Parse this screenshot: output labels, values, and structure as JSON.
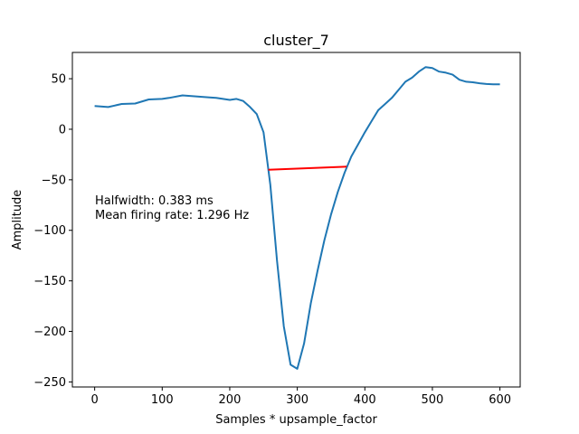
{
  "chart_data": {
    "type": "line",
    "title": "cluster_7",
    "xlabel": "Samples * upsample_factor",
    "ylabel": "Amplitude",
    "xlim": [
      -33,
      630
    ],
    "ylim": [
      -255,
      76
    ],
    "xticks": [
      0,
      100,
      200,
      300,
      400,
      500,
      600
    ],
    "yticks": [
      -250,
      -200,
      -150,
      -100,
      -50,
      0,
      50
    ],
    "xtick_labels": [
      "0",
      "100",
      "200",
      "300",
      "400",
      "500",
      "600"
    ],
    "ytick_labels": [
      "−250",
      "−200",
      "−150",
      "−100",
      "−50",
      "0",
      "50"
    ],
    "grid": false,
    "annotations": [
      "Halfwidth: 0.383 ms",
      "Mean firing rate: 1.296 Hz"
    ],
    "series": [
      {
        "color": "#1f77b4",
        "x": [
          0,
          20,
          40,
          60,
          80,
          100,
          110,
          130,
          150,
          170,
          180,
          200,
          210,
          220,
          230,
          240,
          250,
          260,
          270,
          280,
          290,
          300,
          310,
          320,
          330,
          340,
          350,
          360,
          370,
          380,
          390,
          400,
          410,
          420,
          430,
          440,
          450,
          460,
          470,
          480,
          490,
          500,
          510,
          520,
          530,
          540,
          550,
          560,
          570,
          580,
          590,
          600
        ],
        "y": [
          23,
          22,
          25,
          25.5,
          29.5,
          30,
          31,
          33.5,
          32.5,
          31.5,
          31,
          29,
          30,
          28,
          22,
          15,
          -3,
          -55,
          -130,
          -195,
          -233,
          -237,
          -212,
          -172,
          -140,
          -110,
          -84,
          -62,
          -43,
          -27,
          -15,
          -3,
          8,
          19,
          25,
          31,
          39,
          47,
          51,
          57,
          61.5,
          60.5,
          57,
          56,
          54,
          49,
          47,
          46.5,
          45.5,
          44.8,
          44.5,
          44.5
        ]
      },
      {
        "color": "#ff0000",
        "x": [
          257,
          373
        ],
        "y": [
          -40,
          -37
        ]
      }
    ]
  }
}
